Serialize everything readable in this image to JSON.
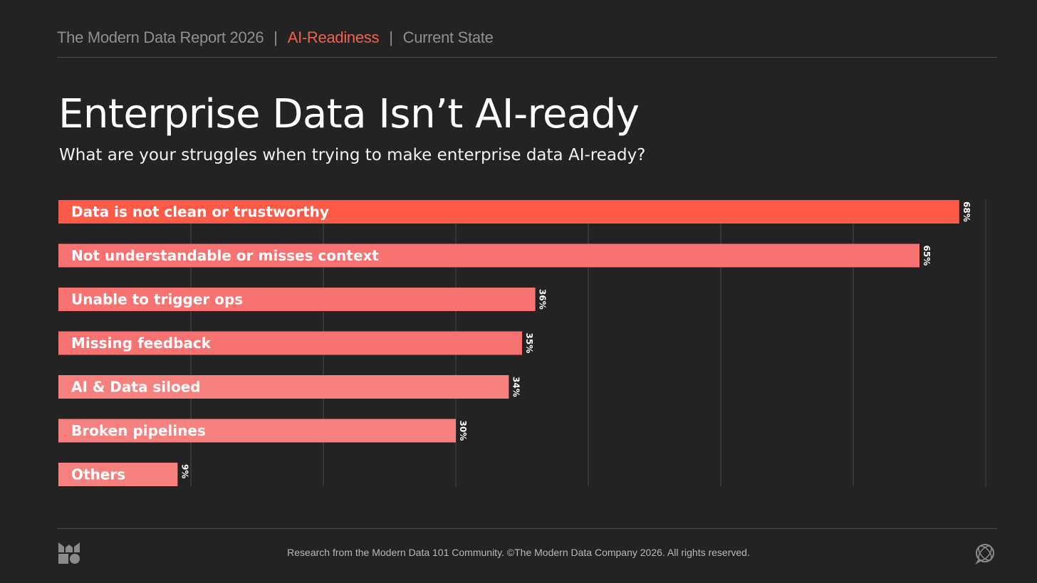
{
  "header": {
    "report": "The Modern Data Report 2026",
    "sep1": "|",
    "section": "AI-Readiness",
    "sep2": "|",
    "subsection": "Current State"
  },
  "title": "Enterprise Data Isn’t AI-ready",
  "subtitle": "What are your struggles when trying to make enterprise data AI-ready?",
  "chart_data": {
    "type": "bar",
    "orientation": "horizontal",
    "title": "Enterprise Data Isn’t AI-ready",
    "categories": [
      "Data is not clean or trustworthy",
      "Not understandable or misses context",
      "Unable to trigger ops",
      "Missing feedback",
      "AI & Data siloed",
      "Broken pipelines",
      "Others"
    ],
    "values": [
      68,
      65,
      36,
      35,
      34,
      30,
      9
    ],
    "value_labels": [
      "68%",
      "65%",
      "36%",
      "35%",
      "34%",
      "30%",
      "9%"
    ],
    "xlim": [
      0,
      70
    ],
    "grid": true,
    "unit": "%",
    "colors": [
      "#fe5a48",
      "#f87272",
      "#f87272",
      "#f87272",
      "#f6807e",
      "#f6807e",
      "#f6807e"
    ]
  },
  "footer": {
    "text": "Research from the Modern Data 101 Community. ©The Modern Data Company 2026. All rights reserved.",
    "logo_icon": "modern-data-logo-icon",
    "globe_icon": "globe-chat-icon"
  },
  "theme": {
    "background": "#232323",
    "accent": "#f0614e",
    "grid": "#4a4a4a"
  }
}
